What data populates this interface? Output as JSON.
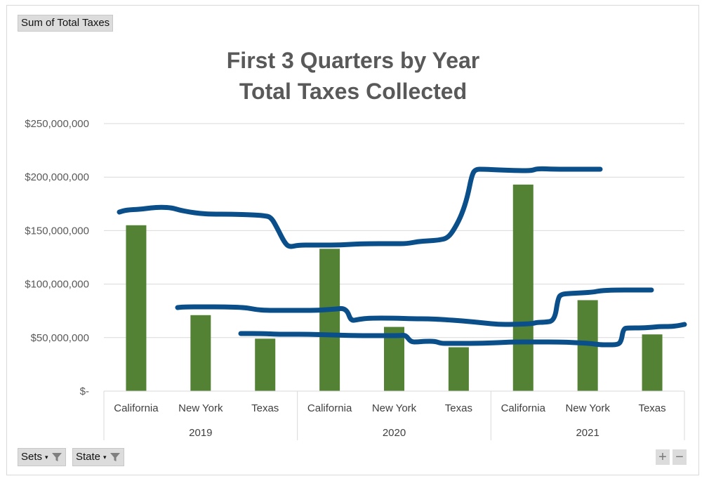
{
  "field_button": "Sum of Total Taxes",
  "filters": [
    {
      "label": "Sets"
    },
    {
      "label": "State"
    }
  ],
  "zoom": {
    "plus": "+",
    "minus": "−"
  },
  "colors": {
    "bar": "#548235",
    "annotation": "#0b4f8a",
    "grid": "#d9d9d9",
    "text": "#595959"
  },
  "chart_data": {
    "type": "bar",
    "title": [
      "First 3 Quarters by Year",
      "Total Taxes Collected"
    ],
    "y_ticks": [
      "$250,000,000",
      "$200,000,000",
      "$150,000,000",
      "$100,000,000",
      "$50,000,000",
      "$-"
    ],
    "ylim": [
      0,
      250000000
    ],
    "grid": true,
    "groups": [
      {
        "label": "2019",
        "categories": [
          "California",
          "New York",
          "Texas"
        ],
        "values": [
          155000000,
          71000000,
          49000000
        ]
      },
      {
        "label": "2020",
        "categories": [
          "California",
          "New York",
          "Texas"
        ],
        "values": [
          133000000,
          60000000,
          41000000
        ]
      },
      {
        "label": "2021",
        "categories": [
          "California",
          "New York",
          "Texas"
        ],
        "values": [
          193000000,
          85000000,
          53000000
        ]
      }
    ],
    "annotations": [
      {
        "name": "california-trace",
        "points": [
          [
            170,
            302
          ],
          [
            180,
            299
          ],
          [
            200,
            298
          ],
          [
            215,
            296
          ],
          [
            230,
            295
          ],
          [
            245,
            296
          ],
          [
            255,
            299
          ],
          [
            270,
            302
          ],
          [
            285,
            304
          ],
          [
            300,
            305
          ],
          [
            330,
            305
          ],
          [
            360,
            306
          ],
          [
            375,
            307
          ],
          [
            386,
            309
          ],
          [
            395,
            325
          ],
          [
            405,
            345
          ],
          [
            412,
            352
          ],
          [
            425,
            349
          ],
          [
            445,
            349
          ],
          [
            480,
            349
          ],
          [
            500,
            348
          ],
          [
            520,
            347
          ],
          [
            560,
            347
          ],
          [
            580,
            347
          ],
          [
            595,
            344
          ],
          [
            610,
            343
          ],
          [
            625,
            342
          ],
          [
            638,
            339
          ],
          [
            648,
            325
          ],
          [
            658,
            305
          ],
          [
            666,
            280
          ],
          [
            672,
            250
          ],
          [
            677,
            241
          ],
          [
            690,
            241
          ],
          [
            710,
            242
          ],
          [
            740,
            243
          ],
          [
            758,
            243
          ],
          [
            765,
            240
          ],
          [
            790,
            241
          ],
          [
            820,
            241
          ],
          [
            855,
            241
          ]
        ]
      },
      {
        "name": "new-york-trace",
        "points": [
          [
            253,
            438
          ],
          [
            263,
            437
          ],
          [
            290,
            437
          ],
          [
            320,
            437
          ],
          [
            350,
            438
          ],
          [
            365,
            441
          ],
          [
            380,
            442
          ],
          [
            420,
            442
          ],
          [
            450,
            442
          ],
          [
            465,
            441
          ],
          [
            480,
            440
          ],
          [
            488,
            439
          ],
          [
            495,
            443
          ],
          [
            500,
            457
          ],
          [
            510,
            455
          ],
          [
            525,
            453
          ],
          [
            560,
            453
          ],
          [
            590,
            454
          ],
          [
            610,
            454
          ],
          [
            630,
            455
          ],
          [
            660,
            457
          ],
          [
            690,
            460
          ],
          [
            710,
            462
          ],
          [
            730,
            462
          ],
          [
            758,
            461
          ],
          [
            765,
            459
          ],
          [
            775,
            459
          ],
          [
            790,
            457
          ],
          [
            795,
            424
          ],
          [
            800,
            419
          ],
          [
            810,
            418
          ],
          [
            830,
            417
          ],
          [
            845,
            416
          ],
          [
            855,
            414
          ],
          [
            875,
            413
          ],
          [
            905,
            413
          ],
          [
            928,
            413
          ]
        ]
      },
      {
        "name": "texas-trace",
        "points": [
          [
            343,
            475
          ],
          [
            375,
            475
          ],
          [
            395,
            476
          ],
          [
            410,
            476
          ],
          [
            440,
            476
          ],
          [
            470,
            477
          ],
          [
            510,
            478
          ],
          [
            540,
            478
          ],
          [
            570,
            478
          ],
          [
            578,
            477
          ],
          [
            585,
            487
          ],
          [
            595,
            487
          ],
          [
            605,
            486
          ],
          [
            620,
            486
          ],
          [
            628,
            489
          ],
          [
            640,
            489
          ],
          [
            680,
            489
          ],
          [
            710,
            488
          ],
          [
            730,
            487
          ],
          [
            760,
            487
          ],
          [
            800,
            487
          ],
          [
            820,
            488
          ],
          [
            840,
            489
          ],
          [
            855,
            491
          ],
          [
            865,
            491
          ],
          [
            880,
            491
          ],
          [
            885,
            486
          ],
          [
            888,
            468
          ],
          [
            895,
            467
          ],
          [
            915,
            467
          ],
          [
            930,
            466
          ],
          [
            940,
            465
          ],
          [
            955,
            465
          ],
          [
            965,
            464
          ],
          [
            975,
            462
          ]
        ]
      }
    ]
  }
}
